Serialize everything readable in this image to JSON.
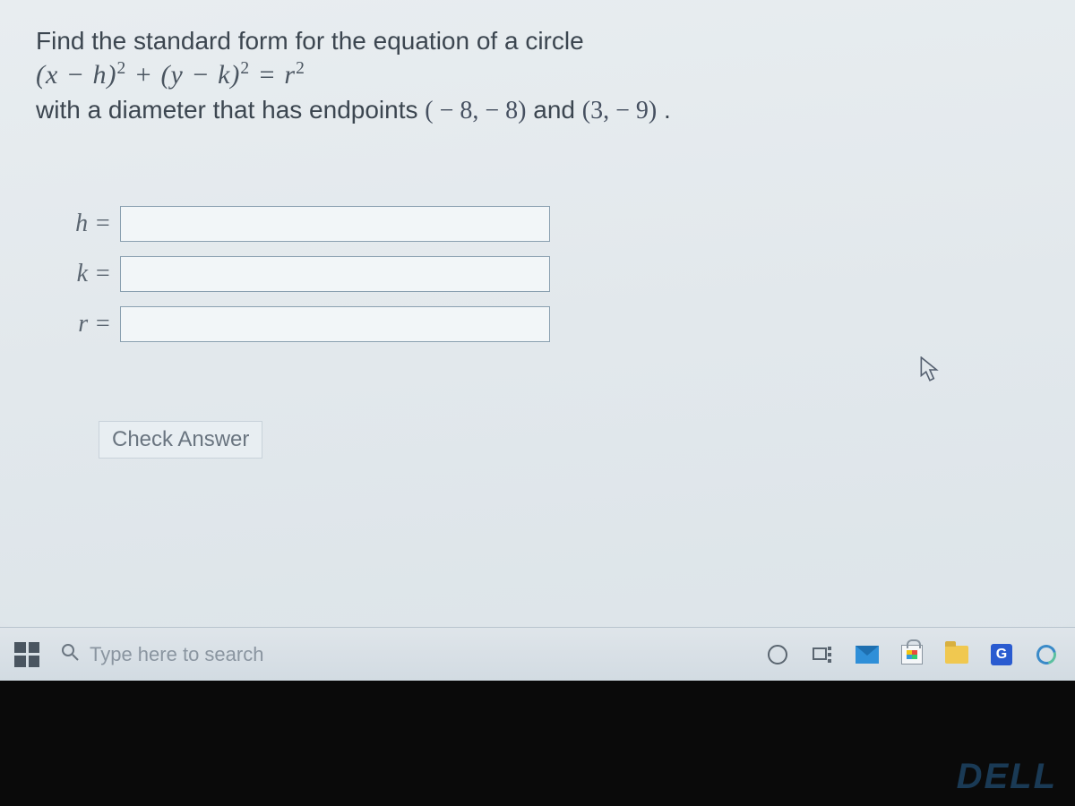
{
  "problem": {
    "line1": "Find the standard form for the equation of a circle",
    "formula_html": "(x − h)<sup>2</sup> + (y − k)<sup>2</sup> = r<sup>2</sup>",
    "line3_prefix": "with a diameter that has endpoints ",
    "point1": "( − 8,  − 8)",
    "mid": " and ",
    "point2": "(3,  − 9)",
    "line3_suffix": "."
  },
  "answers": {
    "rows": [
      {
        "var": "h =",
        "value": ""
      },
      {
        "var": "k =",
        "value": ""
      },
      {
        "var": "r =",
        "value": ""
      }
    ]
  },
  "check_button": "Check Answer",
  "taskbar": {
    "search_placeholder": "Type here to search",
    "g_label": "G"
  },
  "brand": "DELL",
  "colors": {
    "screen_bg_top": "#e8edf0",
    "screen_bg_bot": "#dce4e9",
    "text": "#384048",
    "math": "#4a5560",
    "input_border": "#8aa0b0",
    "taskbar_bg": "#d8dfe5"
  }
}
